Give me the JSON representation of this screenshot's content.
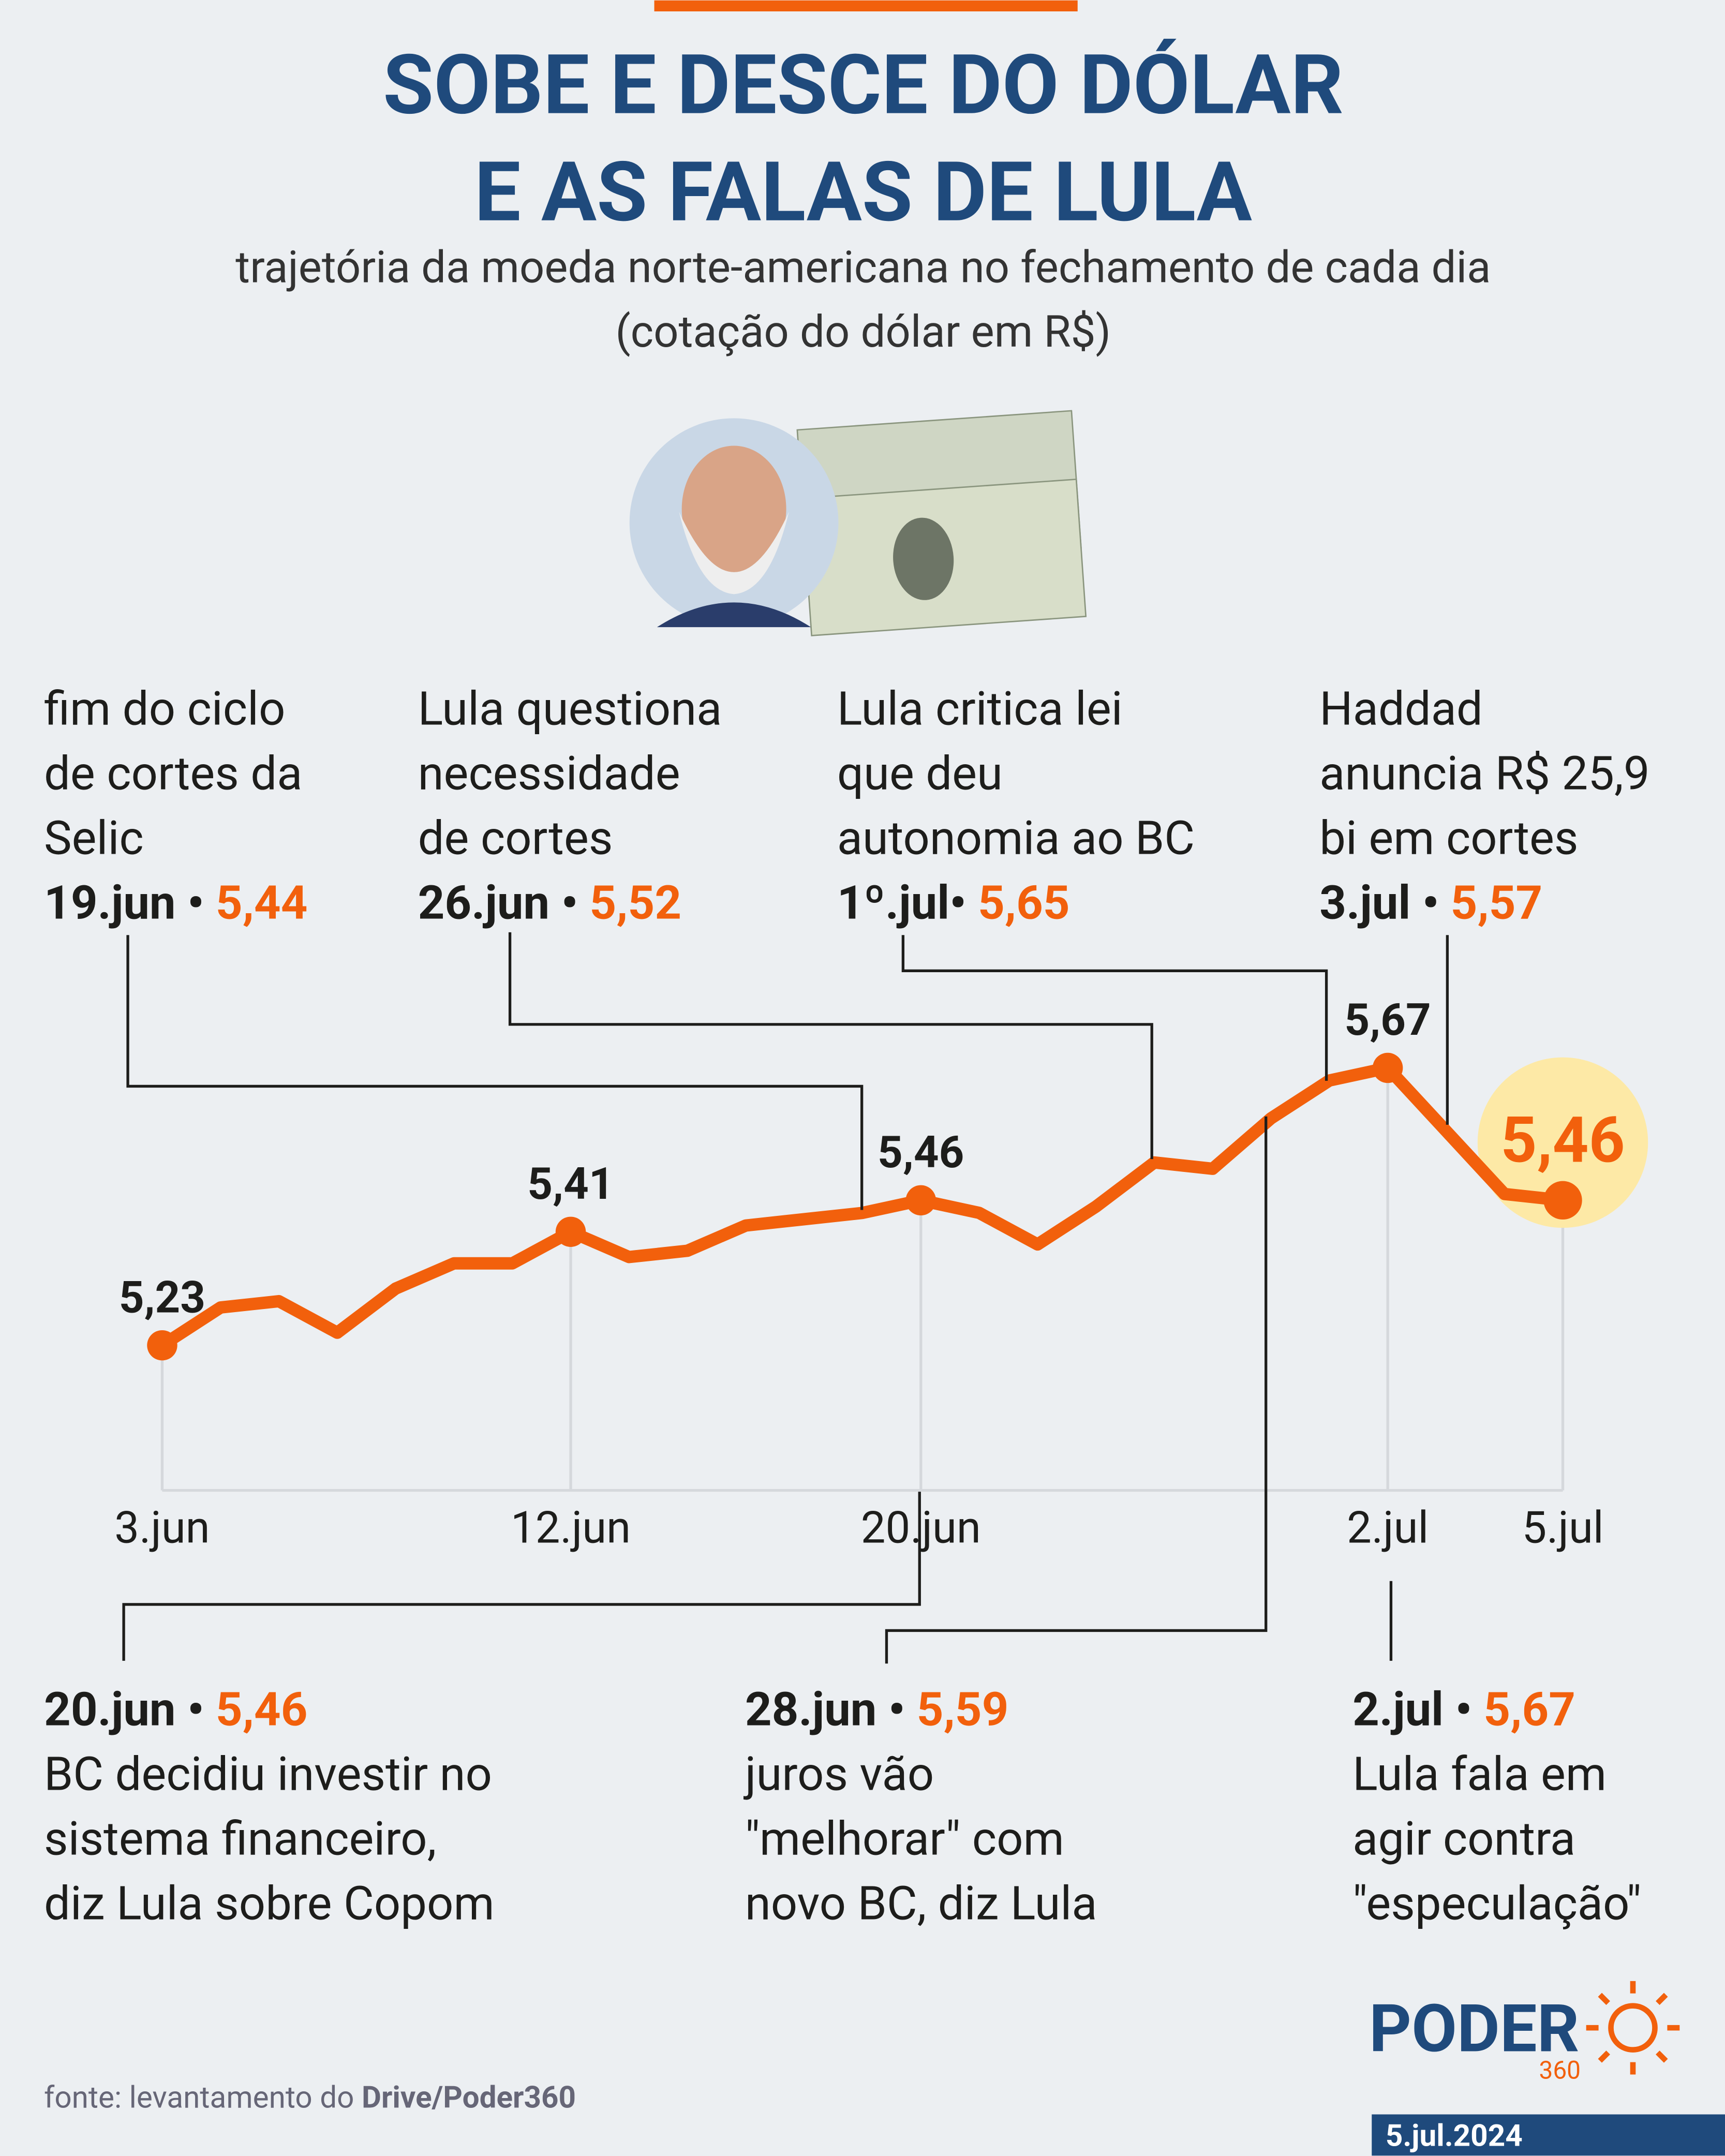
{
  "chart_data": {
    "type": "line",
    "title": [
      "SOBE E DESCE DO DÓLAR",
      "E AS FALAS DE LULA"
    ],
    "subtitle": [
      "trajetória da moeda norte-americana no fechamento de cada dia",
      "(cotação do dólar em R$)"
    ],
    "categories": [
      "3.jun",
      null,
      null,
      null,
      null,
      null,
      null,
      "12.jun",
      null,
      null,
      null,
      null,
      null,
      "20.jun",
      null,
      null,
      null,
      null,
      null,
      null,
      null,
      "2.jul",
      null,
      null,
      "5.jul"
    ],
    "series": [
      {
        "name": "dólar",
        "color": "#f2600c",
        "values": [
          5.23,
          5.29,
          5.3,
          5.25,
          5.32,
          5.36,
          5.36,
          5.41,
          5.37,
          5.38,
          5.42,
          5.43,
          5.44,
          5.46,
          5.44,
          5.39,
          5.45,
          5.52,
          5.51,
          5.59,
          5.65,
          5.67,
          5.57,
          5.47,
          5.46
        ],
        "value_labels": [
          "5,23",
          null,
          null,
          null,
          null,
          null,
          null,
          "5,41",
          null,
          null,
          null,
          null,
          null,
          "5,46",
          null,
          null,
          null,
          null,
          null,
          null,
          null,
          "5,67",
          null,
          null,
          "5,46"
        ]
      }
    ],
    "ylim": [
      5.0,
      5.8
    ],
    "annotations_top": [
      {
        "lines": [
          "fim do ciclo",
          "de cortes da",
          "Selic"
        ],
        "date": "19.jun •",
        "value": "5,44"
      },
      {
        "lines": [
          "Lula questiona",
          "necessidade",
          "de cortes"
        ],
        "date": "26.jun •",
        "value": "5,52"
      },
      {
        "lines": [
          "Lula critica lei",
          "que deu",
          "autonomia ao BC"
        ],
        "date": "1º.jul•",
        "value": "5,65"
      },
      {
        "lines": [
          "Haddad",
          "anuncia R$ 25,9",
          "bi em cortes"
        ],
        "date": "3.jul •",
        "value": "5,57"
      }
    ],
    "annotations_bottom": [
      {
        "lines": [
          "BC decidiu investir no",
          "sistema financeiro,",
          "diz Lula sobre Copom"
        ],
        "date": "20.jun •",
        "value": "5,46"
      },
      {
        "lines": [
          "juros vão",
          "\"melhorar\" com",
          "novo BC, diz Lula"
        ],
        "date": "28.jun •",
        "value": "5,59"
      },
      {
        "lines": [
          "Lula fala em",
          "agir contra",
          "\"especulação\""
        ],
        "date": "2.jul •",
        "value": "5,67"
      }
    ],
    "source": "fonte: levantamento do",
    "source_bold": "Drive/Poder360",
    "brand": "PODER",
    "brand_number": "360",
    "date": "5.jul.2024"
  }
}
